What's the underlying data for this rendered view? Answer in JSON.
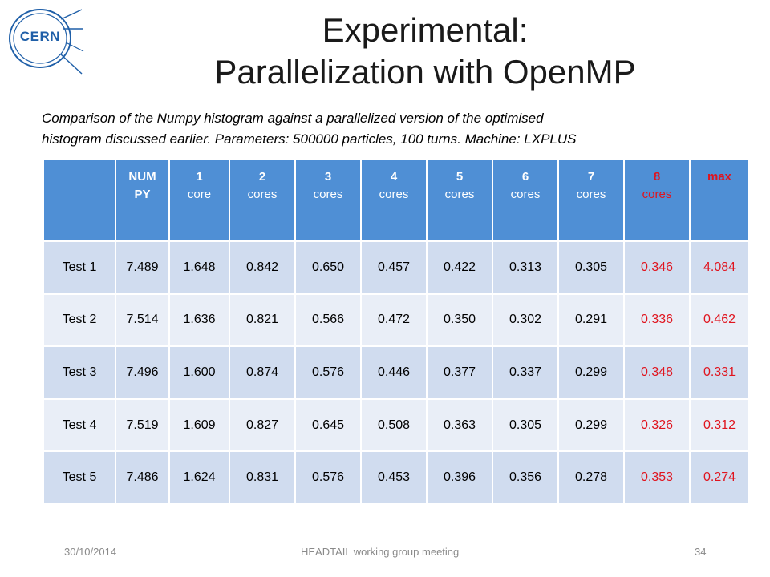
{
  "logo": {
    "text": "CERN"
  },
  "title": {
    "line1": "Experimental:",
    "line2": "Parallelization with OpenMP"
  },
  "subtitle": {
    "line1": "Comparison of the Numpy histogram against a parallelized version of the optimised",
    "line2": "histogram discussed earlier. Parameters: 500000 particles, 100 turns. Machine: LXPLUS"
  },
  "table": {
    "headers": [
      {
        "line1": "",
        "line2": ""
      },
      {
        "line1": "NUM",
        "line2": "PY"
      },
      {
        "line1": "1",
        "line2": "core"
      },
      {
        "line1": "2",
        "line2": "cores"
      },
      {
        "line1": "3",
        "line2": "cores"
      },
      {
        "line1": "4",
        "line2": "cores"
      },
      {
        "line1": "5",
        "line2": "cores"
      },
      {
        "line1": "6",
        "line2": "cores"
      },
      {
        "line1": "7",
        "line2": "cores"
      },
      {
        "line1": "8",
        "line2": "cores"
      },
      {
        "line1": "max",
        "line2": ""
      }
    ],
    "rows": [
      [
        "Test 1",
        "7.489",
        "1.648",
        "0.842",
        "0.650",
        "0.457",
        "0.422",
        "0.313",
        "0.305",
        "0.346",
        "4.084"
      ],
      [
        "Test 2",
        "7.514",
        "1.636",
        "0.821",
        "0.566",
        "0.472",
        "0.350",
        "0.302",
        "0.291",
        "0.336",
        "0.462"
      ],
      [
        "Test 3",
        "7.496",
        "1.600",
        "0.874",
        "0.576",
        "0.446",
        "0.377",
        "0.337",
        "0.299",
        "0.348",
        "0.331"
      ],
      [
        "Test 4",
        "7.519",
        "1.609",
        "0.827",
        "0.645",
        "0.508",
        "0.363",
        "0.305",
        "0.299",
        "0.326",
        "0.312"
      ],
      [
        "Test 5",
        "7.486",
        "1.624",
        "0.831",
        "0.576",
        "0.453",
        "0.396",
        "0.356",
        "0.278",
        "0.353",
        "0.274"
      ]
    ]
  },
  "footer": {
    "date": "30/10/2014",
    "meeting": "HEADTAIL working group meeting",
    "page": "34"
  },
  "colors": {
    "header_bg": "#4f8fd5",
    "row_odd": "#d0dcef",
    "row_even": "#e9eef7",
    "highlight_red": "#e0141e",
    "logo_blue": "#1f5fa8"
  }
}
